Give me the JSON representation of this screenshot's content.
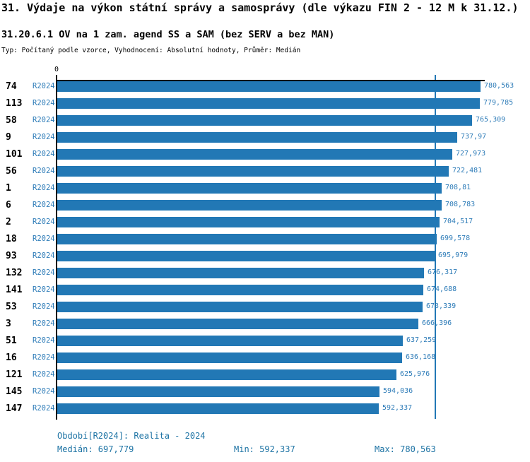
{
  "title": "31. Výdaje na výkon státní správy a samosprávy (dle výkazu FIN 2 - 12 M k 31.12.)",
  "subtitle": "31.20.6.1 OV na 1 zam. agend SS a SAM (bez SERV a bez MAN)",
  "type_line": "Typ: Počítaný podle vzorce, Vyhodnocení: Absolutní hodnoty, Průměr: Medián",
  "colors": {
    "bar": "#2278B5",
    "accent": "#2E7CB8",
    "footer": "#1D73A4",
    "axis": "#000000"
  },
  "chart_data": {
    "type": "bar",
    "orientation": "horizontal",
    "title": "31.20.6.1 OV na 1 zam. agend SS a SAM (bez SERV a bez MAN)",
    "series_label": "R2024",
    "categories": [
      "74",
      "113",
      "58",
      "9",
      "101",
      "56",
      "1",
      "6",
      "2",
      "18",
      "93",
      "132",
      "141",
      "53",
      "3",
      "51",
      "16",
      "121",
      "145",
      "147"
    ],
    "values": [
      780.563,
      779.785,
      765.309,
      737.97,
      727.973,
      722.481,
      708.81,
      708.783,
      704.517,
      699.578,
      695.979,
      676.317,
      674.688,
      673.339,
      666.396,
      637.259,
      636.168,
      625.976,
      594.036,
      592.337
    ],
    "value_labels": [
      "780,563",
      "779,785",
      "765,309",
      "737,97",
      "727,973",
      "722,481",
      "708,81",
      "708,783",
      "704,517",
      "699,578",
      "695,979",
      "676,317",
      "674,688",
      "673,339",
      "666,396",
      "637,259",
      "636,168",
      "625,976",
      "594,036",
      "592,337"
    ],
    "xlim": [
      0,
      780.563
    ],
    "zero_label": "0",
    "median_value": 697.779,
    "grid": false,
    "legend": false,
    "sort": "descending"
  },
  "footer": {
    "period_label": "Období[R2024]: Realita - 2024",
    "median_label": "Medián: 697,779",
    "min_label": "Min: 592,337",
    "max_label": "Max: 780,563"
  }
}
